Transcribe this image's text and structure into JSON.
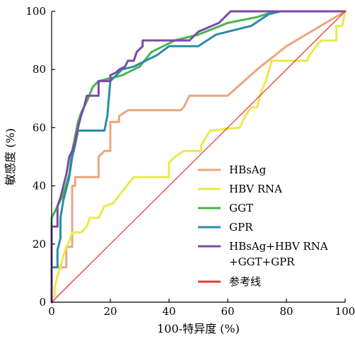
{
  "chart_data": {
    "type": "line",
    "title": "",
    "xlabel": "100-特异度 (%)",
    "ylabel": "敏感度 (%)",
    "xlim": [
      0,
      100
    ],
    "ylim": [
      0,
      100
    ],
    "xticks": [
      "0",
      "20",
      "40",
      "60",
      "80",
      "100"
    ],
    "yticks": [
      "0",
      "20",
      "40",
      "60",
      "80",
      "100"
    ],
    "grid": false,
    "legend_position": "bottom-right",
    "series": [
      {
        "name": "HBsAg",
        "color": "#e9a77f",
        "points": [
          [
            0,
            0
          ],
          [
            0,
            12
          ],
          [
            5,
            12
          ],
          [
            5,
            19
          ],
          [
            7,
            19
          ],
          [
            7,
            40
          ],
          [
            8,
            40
          ],
          [
            8,
            43
          ],
          [
            16,
            43
          ],
          [
            16,
            50
          ],
          [
            18,
            52
          ],
          [
            20,
            52
          ],
          [
            20,
            62
          ],
          [
            23,
            62
          ],
          [
            23,
            64
          ],
          [
            26,
            66
          ],
          [
            44,
            66
          ],
          [
            45,
            67
          ],
          [
            47,
            71
          ],
          [
            60,
            71
          ],
          [
            70,
            80
          ],
          [
            80,
            88
          ],
          [
            90,
            94
          ],
          [
            100,
            100
          ]
        ]
      },
      {
        "name": "HBV RNA",
        "color": "#e9e94a",
        "points": [
          [
            0,
            0
          ],
          [
            0,
            2
          ],
          [
            1,
            2
          ],
          [
            1,
            5
          ],
          [
            2,
            9
          ],
          [
            3,
            12
          ],
          [
            4,
            16
          ],
          [
            5,
            19
          ],
          [
            6,
            21
          ],
          [
            7,
            24
          ],
          [
            10,
            24
          ],
          [
            12,
            26
          ],
          [
            13,
            29
          ],
          [
            16,
            29
          ],
          [
            17,
            31
          ],
          [
            18,
            33
          ],
          [
            21,
            34
          ],
          [
            24,
            38
          ],
          [
            28,
            43
          ],
          [
            40,
            43
          ],
          [
            40,
            48
          ],
          [
            42,
            50
          ],
          [
            45,
            52
          ],
          [
            51,
            52
          ],
          [
            51,
            54
          ],
          [
            54,
            59
          ],
          [
            64,
            60
          ],
          [
            66,
            64
          ],
          [
            68,
            67
          ],
          [
            70,
            67
          ],
          [
            71,
            71
          ],
          [
            72,
            74
          ],
          [
            73,
            76
          ],
          [
            75,
            83
          ],
          [
            87,
            83
          ],
          [
            88,
            85
          ],
          [
            90,
            88
          ],
          [
            92,
            90
          ],
          [
            97,
            90
          ],
          [
            97,
            95
          ],
          [
            99,
            95
          ],
          [
            100,
            100
          ]
        ]
      },
      {
        "name": "GGT",
        "color": "#4ab34a",
        "points": [
          [
            0,
            0
          ],
          [
            0,
            29
          ],
          [
            2,
            33
          ],
          [
            4,
            37
          ],
          [
            6,
            44
          ],
          [
            7,
            52
          ],
          [
            9,
            62
          ],
          [
            10,
            65
          ],
          [
            12,
            69
          ],
          [
            14,
            74
          ],
          [
            16,
            76
          ],
          [
            20,
            77
          ],
          [
            24,
            78
          ],
          [
            26,
            79
          ],
          [
            30,
            81
          ],
          [
            34,
            86
          ],
          [
            38,
            88
          ],
          [
            42,
            90
          ],
          [
            46,
            91
          ],
          [
            50,
            92
          ],
          [
            55,
            94
          ],
          [
            60,
            96
          ],
          [
            70,
            98
          ],
          [
            76,
            100
          ],
          [
            100,
            100
          ]
        ]
      },
      {
        "name": "GPR",
        "color": "#2a8ca6",
        "points": [
          [
            0,
            0
          ],
          [
            0,
            12
          ],
          [
            2,
            12
          ],
          [
            2,
            18
          ],
          [
            3,
            22
          ],
          [
            3,
            29
          ],
          [
            4,
            35
          ],
          [
            5,
            39
          ],
          [
            6,
            43
          ],
          [
            7,
            50
          ],
          [
            8,
            54
          ],
          [
            9,
            59
          ],
          [
            18,
            59
          ],
          [
            19,
            64
          ],
          [
            20,
            76
          ],
          [
            22,
            78
          ],
          [
            24,
            80
          ],
          [
            28,
            81
          ],
          [
            30,
            82
          ],
          [
            36,
            85
          ],
          [
            40,
            88
          ],
          [
            50,
            88
          ],
          [
            56,
            92
          ],
          [
            64,
            94
          ],
          [
            68,
            95
          ],
          [
            74,
            99
          ],
          [
            78,
            100
          ],
          [
            100,
            100
          ]
        ]
      },
      {
        "name": "HBsAg+HBV RNA\n+GGT+GPR",
        "color": "#7b4aa9",
        "points": [
          [
            0,
            0
          ],
          [
            0,
            26
          ],
          [
            2,
            26
          ],
          [
            2,
            33
          ],
          [
            3,
            36
          ],
          [
            4,
            40
          ],
          [
            5,
            44
          ],
          [
            6,
            50
          ],
          [
            7,
            52
          ],
          [
            8,
            55
          ],
          [
            9,
            60
          ],
          [
            10,
            64
          ],
          [
            11,
            67
          ],
          [
            12,
            71
          ],
          [
            16,
            71
          ],
          [
            16,
            76
          ],
          [
            20,
            76
          ],
          [
            20,
            78
          ],
          [
            22,
            79
          ],
          [
            23,
            80
          ],
          [
            25,
            81
          ],
          [
            26,
            83
          ],
          [
            28,
            83
          ],
          [
            29,
            86
          ],
          [
            31,
            88
          ],
          [
            31,
            90
          ],
          [
            47,
            90
          ],
          [
            50,
            93
          ],
          [
            57,
            96
          ],
          [
            60,
            99
          ],
          [
            61,
            100
          ],
          [
            100,
            100
          ]
        ]
      },
      {
        "name": "参考线",
        "color": "#e83a3a",
        "points": [
          [
            0,
            0
          ],
          [
            100,
            100
          ]
        ]
      }
    ]
  }
}
